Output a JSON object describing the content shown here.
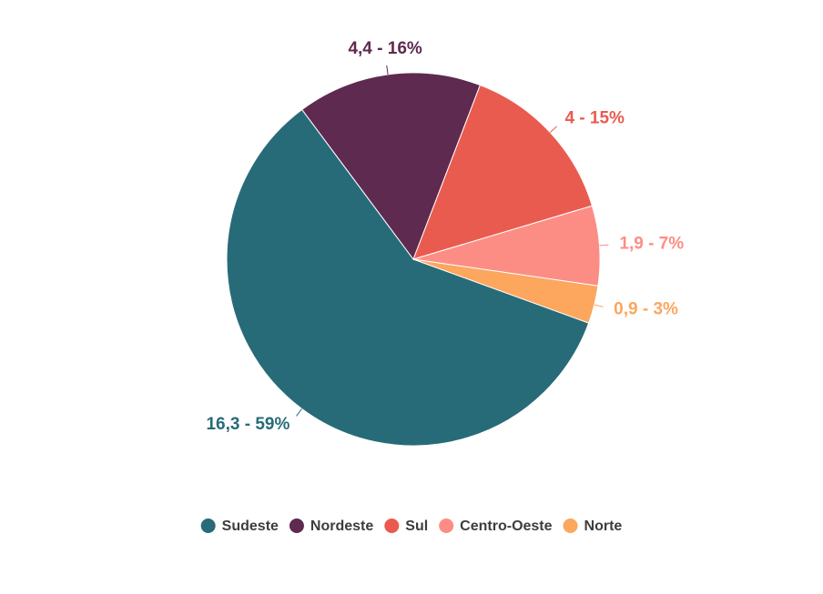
{
  "chart_data": {
    "type": "pie",
    "categories": [
      "Sudeste",
      "Nordeste",
      "Sul",
      "Centro-Oeste",
      "Norte"
    ],
    "values": [
      16.3,
      4.4,
      4,
      1.9,
      0.9
    ],
    "value_labels": [
      "16,3 - 59%",
      "4,4 - 16%",
      "4 - 15%",
      "1,9 - 7%",
      "0,9 - 3%"
    ],
    "colors": [
      "#286b78",
      "#5f2a50",
      "#ea5b4f",
      "#fc8d85",
      "#fca65e"
    ],
    "legend": "bottom"
  }
}
